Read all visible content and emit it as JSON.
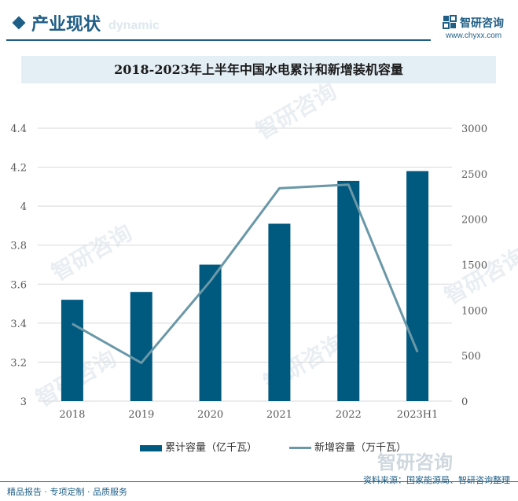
{
  "header": {
    "section_title": "产业现状",
    "section_sub": "dynamic",
    "logo_text": "智研咨询",
    "site": "www.chyxx.com"
  },
  "watermark_text": "智研咨询",
  "colors": {
    "bar": "#00597e",
    "line": "#6a98a8",
    "brand": "#1f5e86",
    "title_bg": "#e4eef5"
  },
  "chart_data": {
    "type": "bar",
    "title": "2018-2023年上半年中国水电累计和新增装机容量",
    "categories": [
      "2018",
      "2019",
      "2020",
      "2021",
      "2022",
      "2023H1"
    ],
    "series": [
      {
        "name": "累计容量（亿千瓦）",
        "type": "bar",
        "axis": "left",
        "values": [
          3.52,
          3.56,
          3.7,
          3.91,
          4.13,
          4.18
        ]
      },
      {
        "name": "新增容量（万千瓦）",
        "type": "line",
        "axis": "right",
        "values": [
          850,
          420,
          1320,
          2340,
          2380,
          540
        ]
      }
    ],
    "y_left": {
      "min": 3,
      "max": 4.4,
      "ticks": [
        "3",
        "3.2",
        "3.4",
        "3.6",
        "3.8",
        "4",
        "4.2",
        "4.4"
      ]
    },
    "y_right": {
      "min": 0,
      "max": 3000,
      "ticks": [
        "0",
        "500",
        "1000",
        "1500",
        "2000",
        "2500",
        "3000"
      ]
    },
    "grid": true,
    "legend_position": "bottom"
  },
  "footer": {
    "left": "精品报告 · 专项定制 · 品质服务",
    "right": "资料来源：国家能源局、智研咨询整理",
    "brand": "智研咨询"
  }
}
